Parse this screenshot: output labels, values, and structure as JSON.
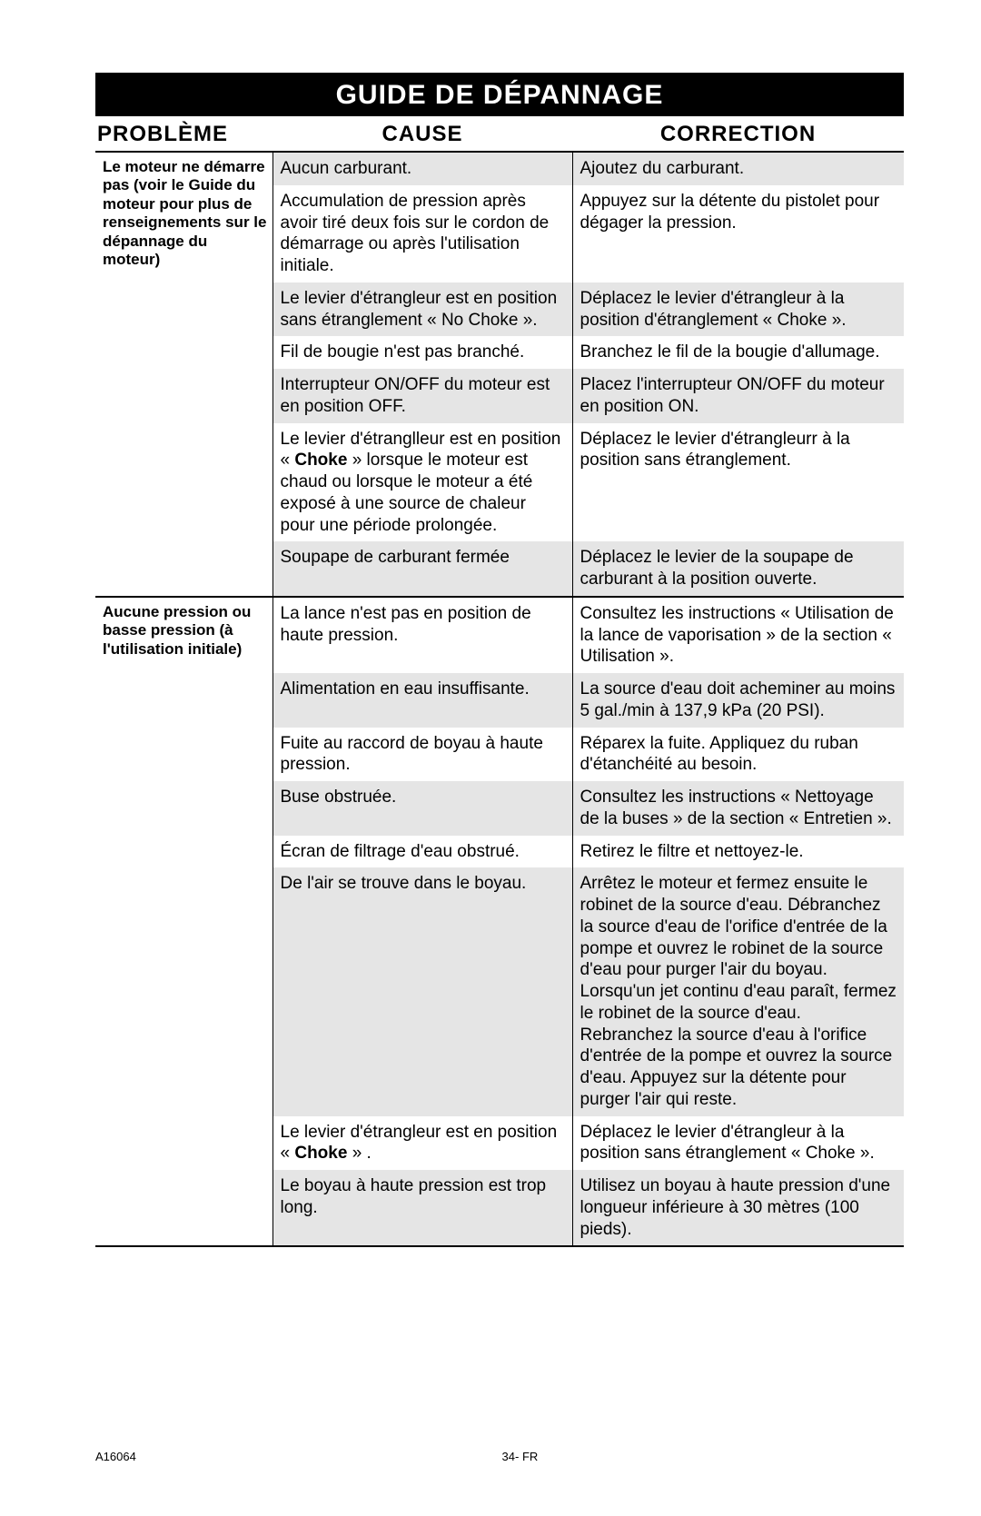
{
  "title": "GUIDE DE DÉPANNAGE",
  "headers": {
    "problem": "PROBLÈME",
    "cause": "CAUSE",
    "correction": "CORRECTION"
  },
  "problems": [
    {
      "label": "Le moteur ne démarre pas (voir le Guide du moteur pour plus de renseignements sur le dépannage du moteur)",
      "rows": [
        {
          "cause": "Aucun carburant.",
          "correction": "Ajoutez du carburant.",
          "shaded": true
        },
        {
          "cause": "Accumulation de pression après avoir tiré deux fois sur le cordon de démarrage ou après l'utilisation initiale.",
          "correction": "Appuyez sur la détente du pistolet pour dégager la pression.",
          "shaded": false
        },
        {
          "cause": "Le levier d'étrangleur est en position sans étranglement « No Choke ».",
          "correction": "Déplacez le levier d'étrangleur à la position d'étranglement « Choke ».",
          "shaded": true
        },
        {
          "cause": "Fil de bougie n'est pas branché.",
          "correction": "Branchez le fil de la bougie d'allumage.",
          "shaded": false
        },
        {
          "cause": "Interrupteur ON/OFF du moteur est en position OFF.",
          "correction": "Placez l'interrupteur ON/OFF du moteur en position ON.",
          "shaded": true
        },
        {
          "cause_html": "Le levier d'étranglleur est en position « <b>Choke</b> » lorsque le moteur est chaud ou lorsque le moteur a été exposé à une source de chaleur pour une période prolongée.",
          "correction": "Déplacez le levier d'étrangleurr à la position sans étranglement.",
          "shaded": false
        },
        {
          "cause": "Soupape de carburant fermée",
          "correction": "Déplacez le levier de la soupape de carburant à la position ouverte.",
          "shaded": true,
          "sep": true
        }
      ]
    },
    {
      "label": "Aucune pression ou basse pression (à l'utilisation initiale)",
      "rows": [
        {
          "cause": "La lance n'est pas en position de haute pression.",
          "correction": "Consultez les instructions « Utilisation de la lance de vaporisation » de la section « Utilisation ».",
          "shaded": false
        },
        {
          "cause": "Alimentation en eau insuffisante.",
          "correction": "La source d'eau doit acheminer au moins 5 gal./min à 137,9 kPa (20 PSI).",
          "shaded": true
        },
        {
          "cause": "Fuite au raccord de boyau à haute pression.",
          "correction": "Réparex la fuite. Appliquez du ruban d'étanchéité au besoin.",
          "shaded": false
        },
        {
          "cause": "Buse obstruée.",
          "correction": "Consultez les instructions « Nettoyage de la buses » de la section « Entretien ».",
          "shaded": true
        },
        {
          "cause": "Écran de filtrage d'eau obstrué.",
          "correction": "Retirez le filtre et nettoyez-le.",
          "shaded": false
        },
        {
          "cause": "De l'air se trouve dans le boyau.",
          "correction": "Arrêtez le moteur et fermez ensuite le robinet de la source d'eau. Débranchez la source d'eau de l'orifice d'entrée de la pompe et ouvrez le robinet de la source d'eau pour purger l'air du boyau. Lorsqu'un jet continu d'eau paraît, fermez le robinet de la source d'eau. Rebranchez la source d'eau à l'orifice d'entrée de la pompe et ouvrez la source d'eau. Appuyez sur la détente pour purger l'air qui reste.",
          "shaded": true
        },
        {
          "cause_html": "Le levier d'étrangleur est en position « <b>Choke</b> » .",
          "correction": "Déplacez le levier d'étrangleur à la position sans étranglement « Choke ».",
          "shaded": false
        },
        {
          "cause": "Le boyau à haute pression est trop long.",
          "correction": "Utilisez un boyau à haute pression d'une longueur inférieure à 30 mètres (100 pieds).",
          "shaded": true,
          "sep": true
        }
      ]
    }
  ],
  "footer": {
    "code": "A16064",
    "page": "34- FR"
  }
}
